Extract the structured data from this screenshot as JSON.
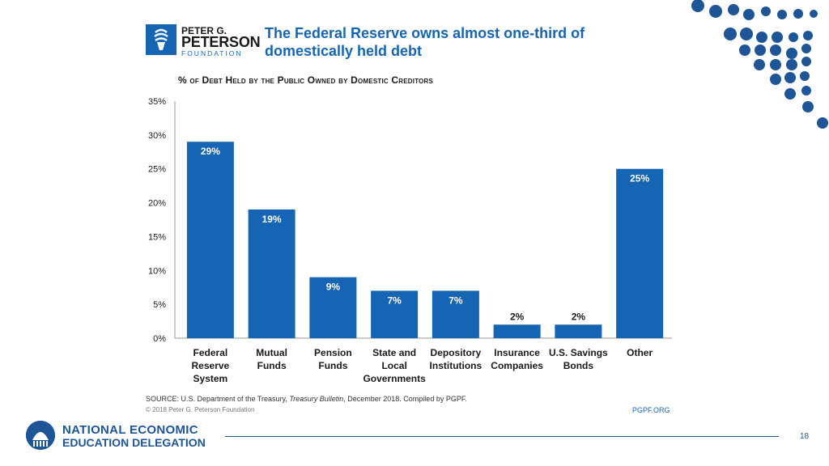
{
  "logo": {
    "line1": "PETER G.",
    "line2": "PETERSON",
    "line3": "FOUNDATION"
  },
  "headline": "The Federal Reserve owns almost one-third of domestically held debt",
  "subtitle": "% of Debt Held by the Public Owned by Domestic Creditors",
  "chart_data": {
    "type": "bar",
    "categories": [
      [
        "Federal",
        "Reserve",
        "System"
      ],
      [
        "Mutual",
        "Funds"
      ],
      [
        "Pension",
        "Funds"
      ],
      [
        "State and",
        "Local",
        "Governments"
      ],
      [
        "Depository",
        "Institutions"
      ],
      [
        "Insurance",
        "Companies"
      ],
      [
        "U.S. Savings",
        "Bonds"
      ],
      [
        "Other"
      ]
    ],
    "values": [
      29,
      19,
      9,
      7,
      7,
      2,
      2,
      25
    ],
    "data_labels": [
      "29%",
      "19%",
      "9%",
      "7%",
      "7%",
      "2%",
      "2%",
      "25%"
    ],
    "yticks": [
      "0%",
      "5%",
      "10%",
      "15%",
      "20%",
      "25%",
      "30%",
      "35%"
    ],
    "ylim": [
      0,
      35
    ],
    "bar_color": "#1565b4",
    "title": "% of Debt Held by the Public Owned by Domestic Creditors"
  },
  "source": {
    "prefix": "SOURCE: U.S. Department of the Treasury, ",
    "italic": "Treasury Bulletin",
    "suffix": ", December 2018. Compiled by PGPF."
  },
  "copyright": "© 2018 Peter G. Peterson Foundation",
  "url": "PGPF.ORG",
  "footer": {
    "org_line1": "NATIONAL ECONOMIC",
    "org_line2": "EDUCATION DELEGATION",
    "page_number": "18"
  },
  "colors": {
    "accent": "#1565b4",
    "footer_blue": "#1d5596"
  }
}
